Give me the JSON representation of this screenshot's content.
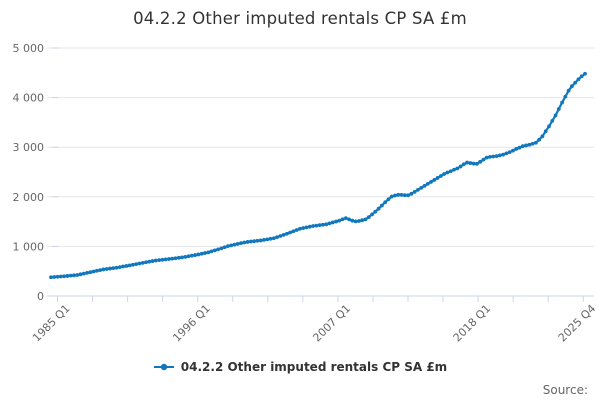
{
  "title": "04.2.2 Other imputed rentals CP SA £m",
  "legend": {
    "label": "04.2.2 Other imputed rentals CP SA £m"
  },
  "source": {
    "label": "Source:"
  },
  "colors": {
    "line": "#1278be",
    "grid": "#e6e6e6",
    "axis": "#ccd6eb",
    "tick_label": "#666666",
    "title_text": "#333333",
    "legend_text": "#333333",
    "source_text": "#666666",
    "background": "#ffffff"
  },
  "y_axis": {
    "tick_labels": [
      "5 000",
      "4 000",
      "3 000",
      "2 000",
      "1 000",
      "0"
    ],
    "tick_values": [
      5000,
      4000,
      3000,
      2000,
      1000,
      0
    ]
  },
  "x_axis": {
    "tick_count": 16,
    "labels": [
      {
        "text": "1985 Q1",
        "tick_index": 0
      },
      {
        "text": "1996 Q1",
        "tick_index": 4
      },
      {
        "text": "2007 Q1",
        "tick_index": 8
      },
      {
        "text": "2018 Q1",
        "tick_index": 12
      },
      {
        "text": "2025 Q4",
        "tick_index": 15
      }
    ]
  },
  "chart_data": {
    "type": "line",
    "title": "04.2.2 Other imputed rentals CP SA £m",
    "xlabel": "",
    "ylabel": "",
    "ylim": [
      0,
      5000
    ],
    "grid": "horizontal",
    "legend_position": "bottom",
    "marker": "circle",
    "x_tick_labels": [
      "1985 Q1",
      "1996 Q1",
      "2007 Q1",
      "2018 Q1",
      "2025 Q4"
    ],
    "series": [
      {
        "name": "04.2.2 Other imputed rentals CP SA £m",
        "color": "#1278be",
        "frequency": "quarterly",
        "start": "1985 Q1",
        "end": "2025 Q4",
        "values": [
          378,
          383,
          388,
          393,
          398,
          404,
          410,
          417,
          424,
          437,
          451,
          466,
          480,
          494,
          508,
          522,
          535,
          544,
          553,
          562,
          570,
          582,
          595,
          606,
          618,
          630,
          643,
          655,
          668,
          680,
          692,
          704,
          715,
          723,
          730,
          738,
          745,
          753,
          761,
          770,
          778,
          789,
          801,
          813,
          825,
          838,
          852,
          866,
          880,
          900,
          920,
          940,
          960,
          983,
          1005,
          1020,
          1035,
          1050,
          1065,
          1078,
          1090,
          1098,
          1105,
          1113,
          1120,
          1131,
          1142,
          1153,
          1165,
          1187,
          1210,
          1232,
          1255,
          1280,
          1305,
          1330,
          1355,
          1370,
          1384,
          1397,
          1410,
          1419,
          1428,
          1436,
          1445,
          1464,
          1483,
          1501,
          1520,
          1548,
          1570,
          1545,
          1518,
          1505,
          1512,
          1528,
          1545,
          1590,
          1645,
          1700,
          1760,
          1825,
          1890,
          1950,
          2005,
          2025,
          2040,
          2038,
          2032,
          2030,
          2060,
          2100,
          2140,
          2180,
          2220,
          2260,
          2300,
          2340,
          2380,
          2420,
          2460,
          2490,
          2515,
          2545,
          2570,
          2610,
          2655,
          2690,
          2680,
          2670,
          2665,
          2705,
          2750,
          2790,
          2805,
          2812,
          2820,
          2835,
          2850,
          2875,
          2900,
          2930,
          2965,
          2990,
          3020,
          3035,
          3050,
          3070,
          3090,
          3150,
          3220,
          3320,
          3420,
          3530,
          3640,
          3770,
          3900,
          4020,
          4140,
          4230,
          4300,
          4370,
          4430,
          4480
        ]
      }
    ]
  }
}
